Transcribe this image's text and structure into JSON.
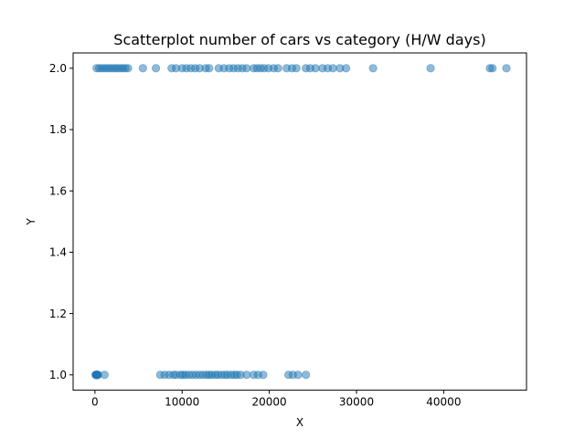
{
  "chart_data": {
    "type": "scatter",
    "title": "Scatterplot number of cars vs category (H/W days)",
    "xlabel": "X",
    "ylabel": "Y",
    "xlim": [
      -2500,
      49500
    ],
    "ylim": [
      0.95,
      2.05
    ],
    "xticks": [
      0,
      10000,
      20000,
      30000,
      40000
    ],
    "xtick_labels": [
      "0",
      "10000",
      "20000",
      "30000",
      "40000"
    ],
    "yticks": [
      1.0,
      1.2,
      1.4,
      1.6,
      1.8,
      2.0
    ],
    "ytick_labels": [
      "1.0",
      "1.2",
      "1.4",
      "1.6",
      "1.8",
      "2.0"
    ],
    "grid": false,
    "marker_color": "#1f77b4",
    "marker_alpha": 0.5,
    "series": [
      {
        "x": [
          80,
          120,
          150,
          180,
          200,
          220,
          250,
          280,
          300,
          350,
          1100,
          7500,
          8000,
          8500,
          9000,
          9300,
          9800,
          10100,
          10400,
          10800,
          11200,
          11600,
          12000,
          12400,
          12800,
          13100,
          13400,
          13800,
          14100,
          14500,
          14900,
          15200,
          15600,
          16000,
          16300,
          16700,
          17400,
          18200,
          18700,
          19300,
          22200,
          22700,
          23300,
          24200
        ],
        "y": [
          1,
          1,
          1,
          1,
          1,
          1,
          1,
          1,
          1,
          1,
          1,
          1,
          1,
          1,
          1,
          1,
          1,
          1,
          1,
          1,
          1,
          1,
          1,
          1,
          1,
          1,
          1,
          1,
          1,
          1,
          1,
          1,
          1,
          1,
          1,
          1,
          1,
          1,
          1,
          1,
          1,
          1,
          1,
          1
        ]
      },
      {
        "x": [
          200,
          500,
          800,
          1100,
          1400,
          1700,
          2000,
          2300,
          2600,
          2900,
          3200,
          3500,
          3800,
          5500,
          7000,
          8800,
          9300,
          10000,
          10500,
          11000,
          11500,
          12000,
          12700,
          13100,
          14200,
          14800,
          15400,
          15900,
          16400,
          16900,
          17400,
          18200,
          18600,
          19000,
          19400,
          19900,
          20500,
          21000,
          22000,
          22600,
          23100,
          24200,
          24700,
          25300,
          26100,
          26700,
          27300,
          28100,
          28800,
          31900,
          38500,
          45300,
          45600,
          47200
        ],
        "y": [
          2,
          2,
          2,
          2,
          2,
          2,
          2,
          2,
          2,
          2,
          2,
          2,
          2,
          2,
          2,
          2,
          2,
          2,
          2,
          2,
          2,
          2,
          2,
          2,
          2,
          2,
          2,
          2,
          2,
          2,
          2,
          2,
          2,
          2,
          2,
          2,
          2,
          2,
          2,
          2,
          2,
          2,
          2,
          2,
          2,
          2,
          2,
          2,
          2,
          2,
          2,
          2,
          2,
          2
        ]
      }
    ]
  }
}
